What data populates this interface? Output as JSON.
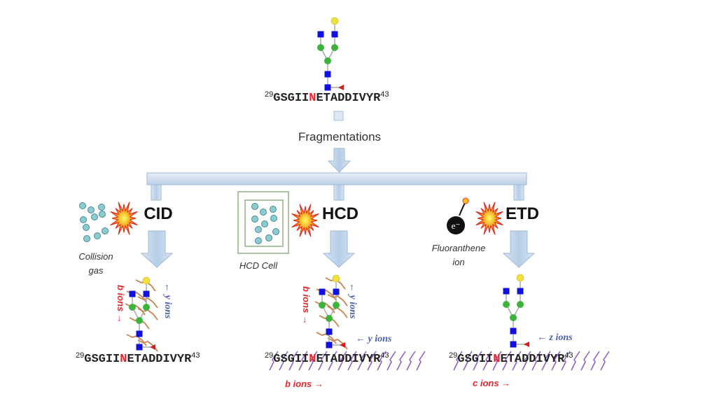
{
  "peptide": {
    "start": "29",
    "prefix": "GSGII",
    "site": "N",
    "suffix": "ETADDIVYR",
    "end": "43"
  },
  "fragmentations_label": "Fragmentations",
  "methods": [
    {
      "label": "CID",
      "caption_line1": "Collision",
      "caption_line2": "gas",
      "ion_left": "b ions →",
      "ion_right": "← y ions"
    },
    {
      "label": "HCD",
      "caption_line1": "HCD Cell",
      "ion_left": "b ions →",
      "ion_right": "← y ions",
      "ion_seq_top": "← y ions",
      "ion_seq_bottom": "b ions →"
    },
    {
      "label": "ETD",
      "caption_line1": "Fluoranthene",
      "caption_line2": "ion",
      "electron": "e⁻",
      "ion_seq_top": "← z ions",
      "ion_seq_bottom": "c ions →"
    }
  ],
  "colors": {
    "hexnac": "#1010e0",
    "hexose": "#3cb43c",
    "galactose": "#f0e040",
    "fucose": "#d02020",
    "site": "#e8262a",
    "arrow": "#bcd3ea",
    "cleavage_glycan": "#c8824a",
    "cleavage_peptide": "#8a5cc8"
  }
}
